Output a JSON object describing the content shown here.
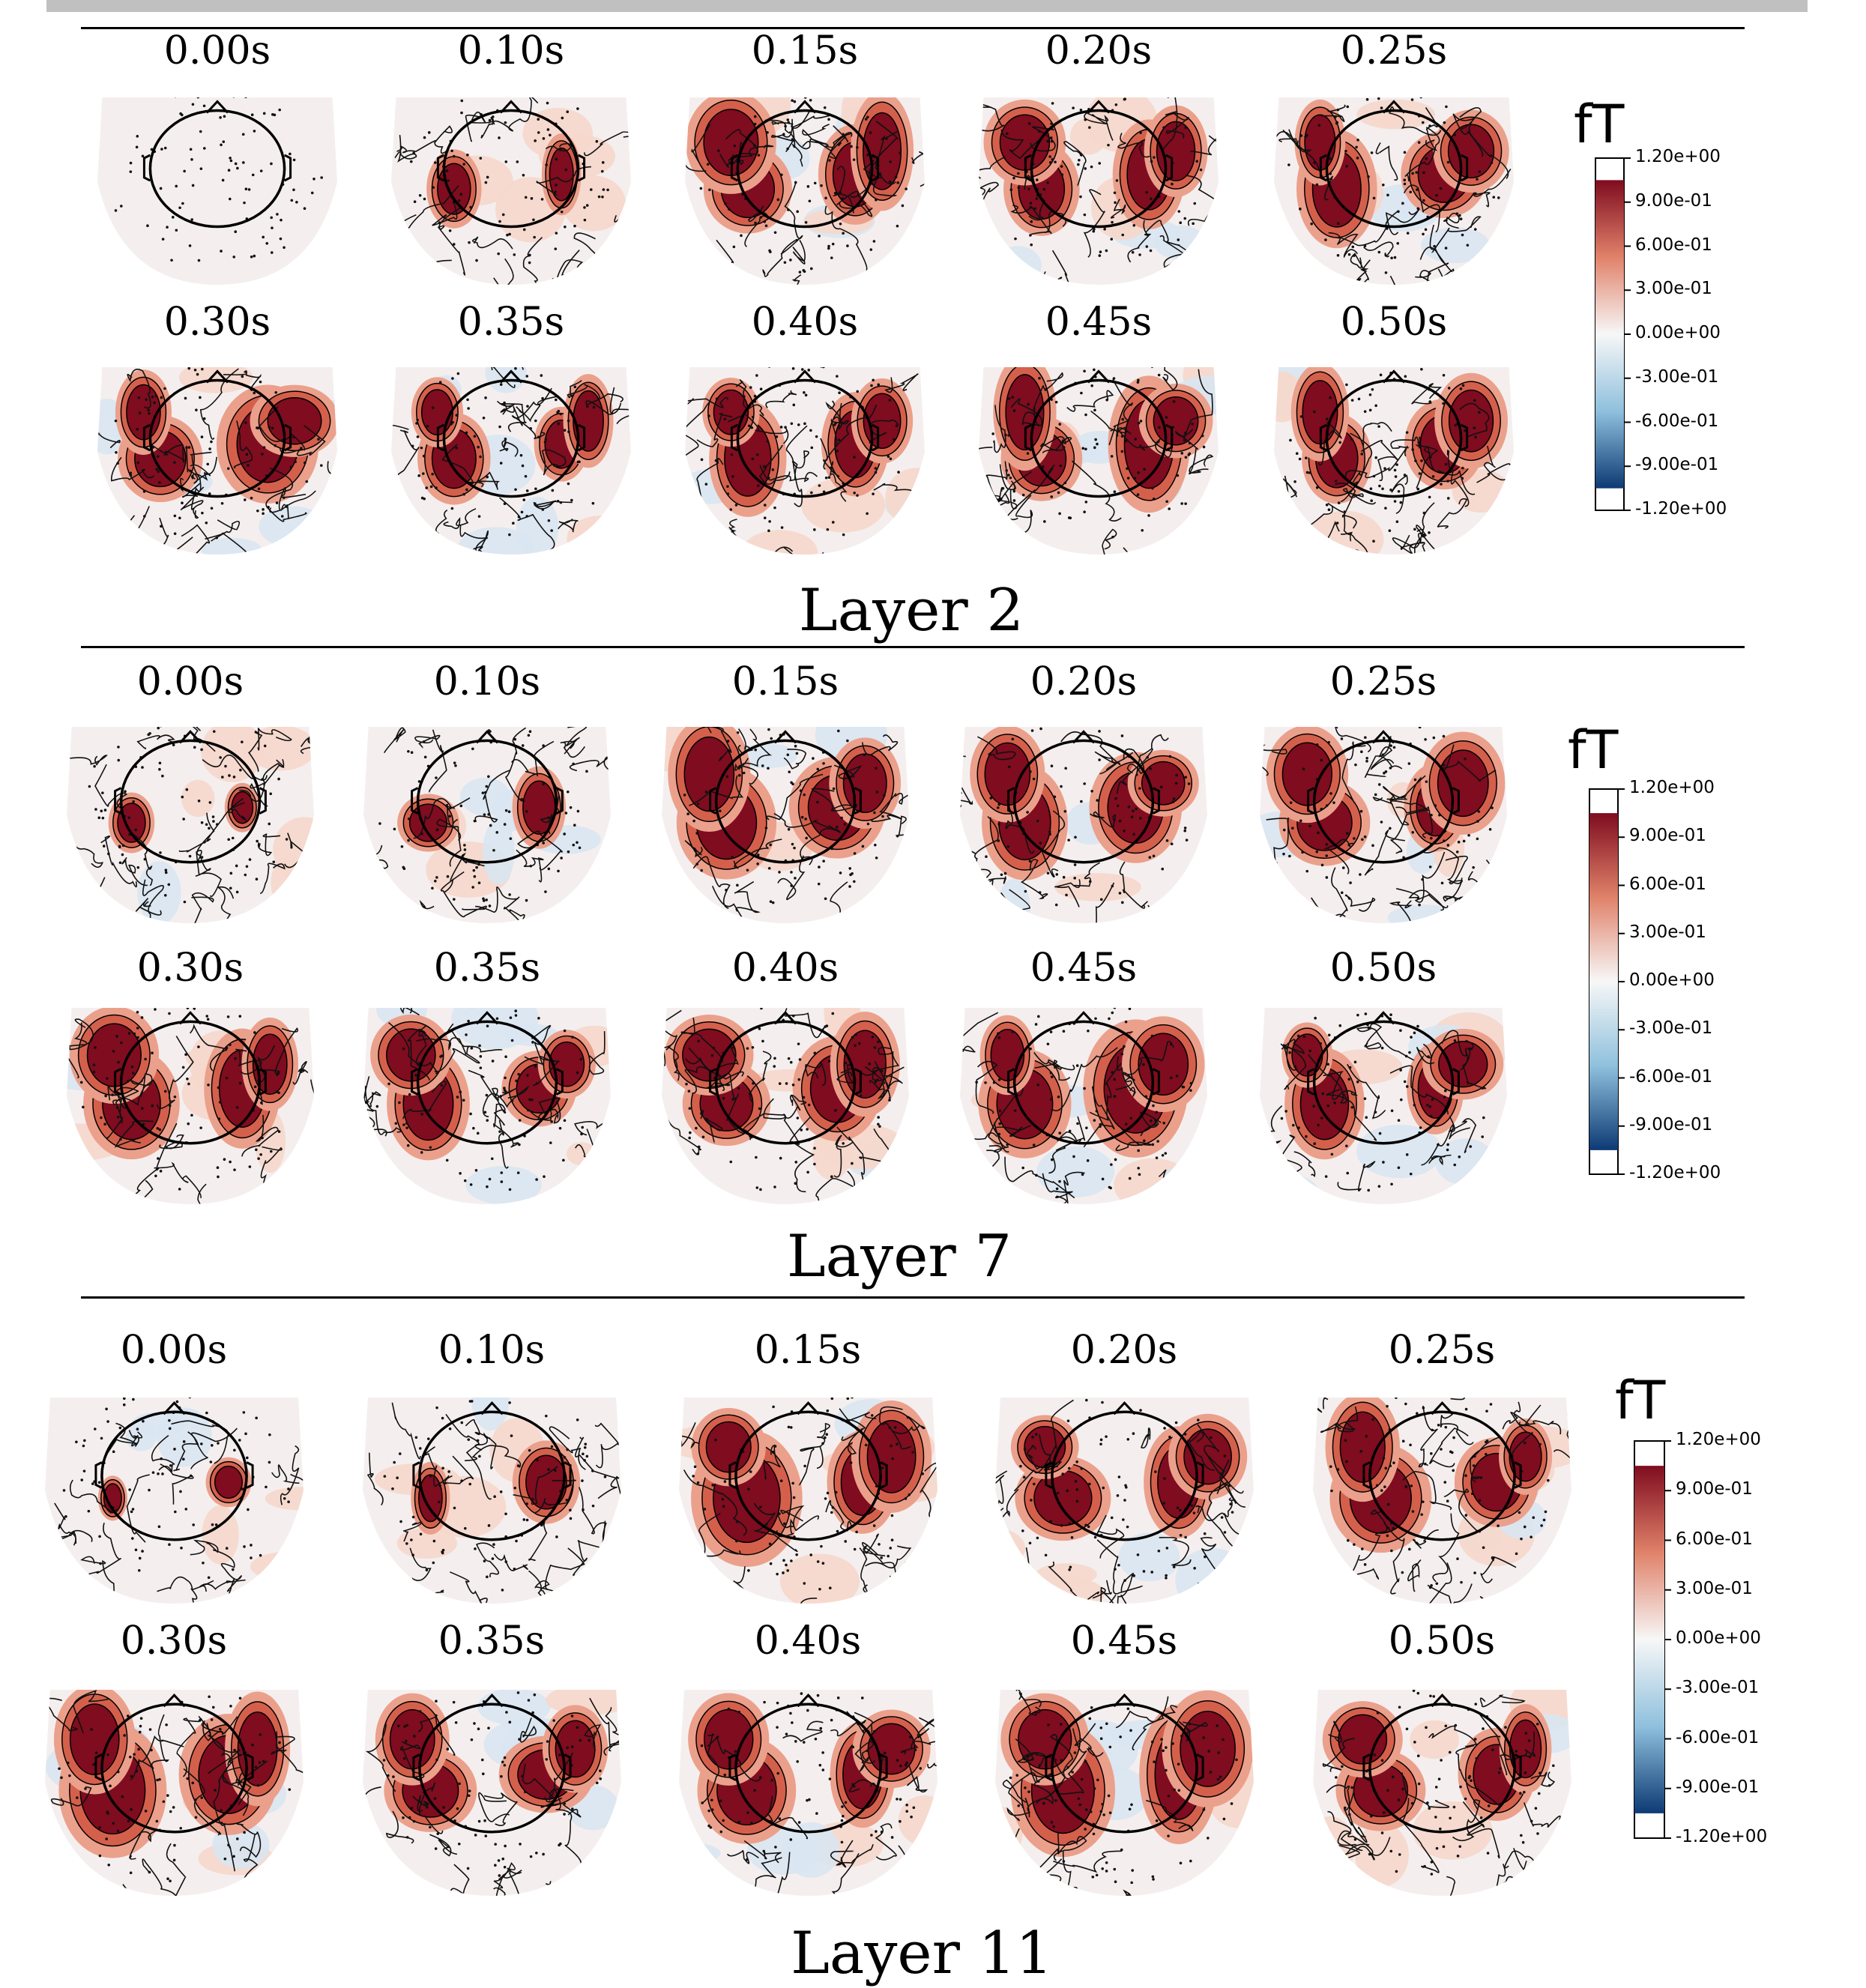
{
  "time_labels": [
    "0.00s",
    "0.10s",
    "0.15s",
    "0.20s",
    "0.25s",
    "0.30s",
    "0.35s",
    "0.40s",
    "0.45s",
    "0.50s"
  ],
  "colorbar": {
    "unit": "fT",
    "ticks": [
      "1.20e+00",
      "9.00e-01",
      "6.00e-01",
      "3.00e-01",
      "0.00e+00",
      "-3.00e-01",
      "-6.00e-01",
      "-9.00e-01",
      "-1.20e+00"
    ],
    "colors": {
      "positive": "#7f0c1f",
      "mid_pos": "#e0826a",
      "zero": "#f7f7f7",
      "mid_neg": "#8fc0dd",
      "negative": "#0d3a74"
    }
  },
  "panels": [
    {
      "caption": "Layer 2"
    },
    {
      "caption": "Layer 7"
    },
    {
      "caption": "Layer 11"
    }
  ]
}
